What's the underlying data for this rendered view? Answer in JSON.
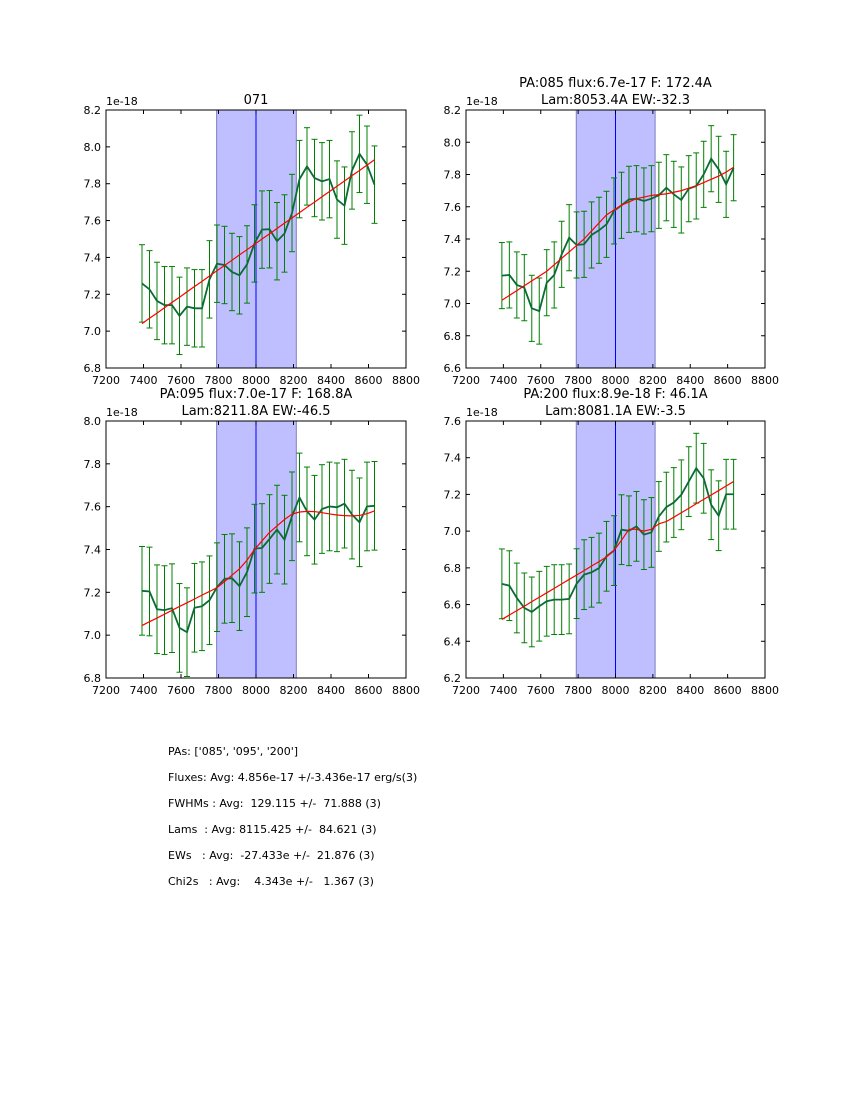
{
  "chart_data": [
    {
      "type": "line",
      "title": [
        "071"
      ],
      "offset_label": "1e-18",
      "xlim": [
        7200,
        8800
      ],
      "ylim": [
        6.8,
        8.2
      ],
      "xticks": [
        7200,
        7400,
        7600,
        7800,
        8000,
        8200,
        8400,
        8600,
        8800
      ],
      "yticks": [
        6.8,
        7.0,
        7.2,
        7.4,
        7.6,
        7.8,
        8.0,
        8.2
      ],
      "x_start": 7392,
      "x_step": 40,
      "values": [
        7.259,
        7.227,
        7.164,
        7.141,
        7.141,
        7.083,
        7.133,
        7.124,
        7.124,
        7.281,
        7.366,
        7.359,
        7.321,
        7.303,
        7.362,
        7.476,
        7.551,
        7.553,
        7.488,
        7.53,
        7.641,
        7.825,
        7.894,
        7.831,
        7.813,
        7.825,
        7.714,
        7.681,
        7.872,
        7.962,
        7.903,
        7.795
      ],
      "error": 0.21,
      "fit": [
        7.041,
        7.07,
        7.098,
        7.127,
        7.156,
        7.184,
        7.213,
        7.242,
        7.27,
        7.299,
        7.328,
        7.356,
        7.385,
        7.414,
        7.442,
        7.471,
        7.5,
        7.528,
        7.557,
        7.586,
        7.614,
        7.643,
        7.672,
        7.7,
        7.729,
        7.758,
        7.786,
        7.815,
        7.844,
        7.872,
        7.901,
        7.93
      ],
      "band": [
        7790,
        8215
      ],
      "center_line": 8000
    },
    {
      "type": "line",
      "title": [
        "PA:085 flux:6.7e-17 F: 172.4A",
        "Lam:8053.4A EW:-32.3"
      ],
      "offset_label": "1e-18",
      "xlim": [
        7200,
        8800
      ],
      "ylim": [
        6.6,
        8.2
      ],
      "xticks": [
        7200,
        7400,
        7600,
        7800,
        8000,
        8200,
        8400,
        8600,
        8800
      ],
      "yticks": [
        6.6,
        6.8,
        7.0,
        7.2,
        7.4,
        7.6,
        7.8,
        8.0,
        8.2
      ],
      "x_start": 7392,
      "x_step": 40,
      "values": [
        7.173,
        7.177,
        7.115,
        7.098,
        6.97,
        6.953,
        7.129,
        7.177,
        7.305,
        7.408,
        7.363,
        7.367,
        7.425,
        7.454,
        7.491,
        7.574,
        7.609,
        7.646,
        7.65,
        7.636,
        7.65,
        7.671,
        7.718,
        7.677,
        7.642,
        7.712,
        7.729,
        7.801,
        7.898,
        7.832,
        7.739,
        7.842
      ],
      "error": 0.205,
      "fit": [
        7.02,
        7.05,
        7.08,
        7.11,
        7.14,
        7.17,
        7.2,
        7.24,
        7.28,
        7.32,
        7.36,
        7.4,
        7.45,
        7.5,
        7.55,
        7.58,
        7.61,
        7.63,
        7.65,
        7.66,
        7.67,
        7.675,
        7.68,
        7.69,
        7.7,
        7.715,
        7.73,
        7.75,
        7.77,
        7.79,
        7.815,
        7.845
      ],
      "band": [
        7790,
        8212
      ],
      "center_line": 8000
    },
    {
      "type": "line",
      "title": [
        "PA:095 flux:7.0e-17 F: 168.8A",
        "Lam:8211.8A EW:-46.5"
      ],
      "offset_label": "1e-18",
      "xlim": [
        7200,
        8800
      ],
      "ylim": [
        6.8,
        8.0
      ],
      "xticks": [
        7200,
        7400,
        7600,
        7800,
        8000,
        8200,
        8400,
        8600,
        8800
      ],
      "yticks": [
        6.8,
        7.0,
        7.2,
        7.4,
        7.6,
        7.8,
        8.0
      ],
      "x_start": 7392,
      "x_step": 40,
      "values": [
        7.207,
        7.204,
        7.121,
        7.117,
        7.126,
        7.034,
        7.014,
        7.128,
        7.135,
        7.163,
        7.224,
        7.263,
        7.266,
        7.229,
        7.294,
        7.404,
        7.407,
        7.449,
        7.493,
        7.446,
        7.555,
        7.643,
        7.578,
        7.539,
        7.589,
        7.601,
        7.597,
        7.614,
        7.563,
        7.527,
        7.601,
        7.604
      ],
      "error": 0.207,
      "fit": [
        7.045,
        7.063,
        7.08,
        7.098,
        7.116,
        7.134,
        7.151,
        7.169,
        7.187,
        7.204,
        7.222,
        7.25,
        7.28,
        7.31,
        7.35,
        7.4,
        7.44,
        7.48,
        7.51,
        7.54,
        7.565,
        7.575,
        7.578,
        7.577,
        7.572,
        7.566,
        7.561,
        7.558,
        7.557,
        7.559,
        7.567,
        7.58
      ],
      "band": [
        7790,
        8215
      ],
      "center_line": 8000
    },
    {
      "type": "line",
      "title": [
        "PA:200 flux:8.9e-18 F: 46.1A",
        "Lam:8081.1A EW:-3.5"
      ],
      "offset_label": "1e-18",
      "xlim": [
        7200,
        8800
      ],
      "ylim": [
        6.2,
        7.6
      ],
      "xticks": [
        7200,
        7400,
        7600,
        7800,
        8000,
        8200,
        8400,
        8600,
        8800
      ],
      "yticks": [
        6.2,
        6.4,
        6.6,
        6.8,
        7.0,
        7.2,
        7.4,
        7.6
      ],
      "x_start": 7392,
      "x_step": 40,
      "values": [
        6.713,
        6.703,
        6.636,
        6.582,
        6.56,
        6.591,
        6.618,
        6.627,
        6.627,
        6.631,
        6.714,
        6.763,
        6.776,
        6.799,
        6.863,
        6.894,
        7.008,
        7.002,
        7.026,
        6.981,
        6.993,
        7.08,
        7.131,
        7.156,
        7.198,
        7.27,
        7.343,
        7.288,
        7.144,
        7.084,
        7.201,
        7.201
      ],
      "error": 0.19,
      "fit": [
        6.519,
        6.543,
        6.567,
        6.591,
        6.616,
        6.64,
        6.664,
        6.688,
        6.713,
        6.737,
        6.761,
        6.785,
        6.81,
        6.834,
        6.86,
        6.895,
        6.95,
        7.01,
        7.01,
        7.0,
        7.01,
        7.04,
        7.052,
        7.076,
        7.1,
        7.124,
        7.149,
        7.173,
        7.197,
        7.221,
        7.246,
        7.27
      ],
      "band": [
        7790,
        8212
      ],
      "center_line": 8000
    }
  ],
  "colors": {
    "data_line": "#0b6b35",
    "error_bars": "#008000",
    "fit": "#ff0000",
    "band_fill": "#bfbfff",
    "band_edge": "#7f7fbf",
    "center_line": "#0000ff"
  },
  "stats": [
    "PAs: ['085', '095', '200']",
    "Fluxes: Avg: 4.856e-17 +/-3.436e-17 erg/s(3)",
    "FWHMs : Avg:  129.115 +/-  71.888 (3)",
    "Lams  : Avg: 8115.425 +/-  84.621 (3)",
    "EWs   : Avg:  -27.433e +/-  21.876 (3)",
    "Chi2s   : Avg:    4.343e +/-   1.367 (3)"
  ]
}
